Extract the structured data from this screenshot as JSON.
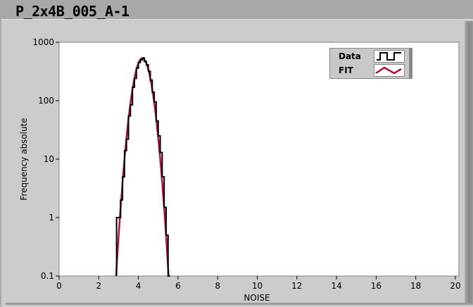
{
  "title": "P_2x4B_005_A-1",
  "chart_data": {
    "type": "line",
    "xlabel": "NOISE",
    "ylabel": "Frequency absolute",
    "xlim": [
      0,
      20
    ],
    "ylim": [
      0.1,
      1000
    ],
    "yscale": "log",
    "xticks": [
      "0",
      "2",
      "4",
      "6",
      "8",
      "10",
      "12",
      "14",
      "16",
      "18",
      "20"
    ],
    "yticks": [
      "0.1",
      "1",
      "10",
      "100",
      "1000"
    ],
    "grid": false,
    "legend": "top-right",
    "colors": {
      "Data": "#000000",
      "FIT": "#b0103a"
    },
    "series": [
      {
        "name": "Data",
        "style": "step",
        "x": [
          2.95,
          3.05,
          3.15,
          3.25,
          3.35,
          3.45,
          3.55,
          3.65,
          3.75,
          3.85,
          3.95,
          4.05,
          4.15,
          4.25,
          4.35,
          4.45,
          4.55,
          4.65,
          4.75,
          4.85,
          4.95,
          5.05,
          5.15,
          5.25,
          5.35,
          5.45,
          5.55
        ],
        "values": [
          1,
          1,
          2,
          5,
          14,
          22,
          55,
          85,
          170,
          240,
          360,
          450,
          500,
          540,
          470,
          410,
          320,
          225,
          140,
          95,
          45,
          25,
          13,
          5,
          1.5,
          0.5,
          0.1
        ]
      },
      {
        "name": "FIT",
        "style": "line",
        "model": "gaussian",
        "amplitude": 530,
        "mean": 4.2,
        "sigma": 0.32
      }
    ]
  }
}
